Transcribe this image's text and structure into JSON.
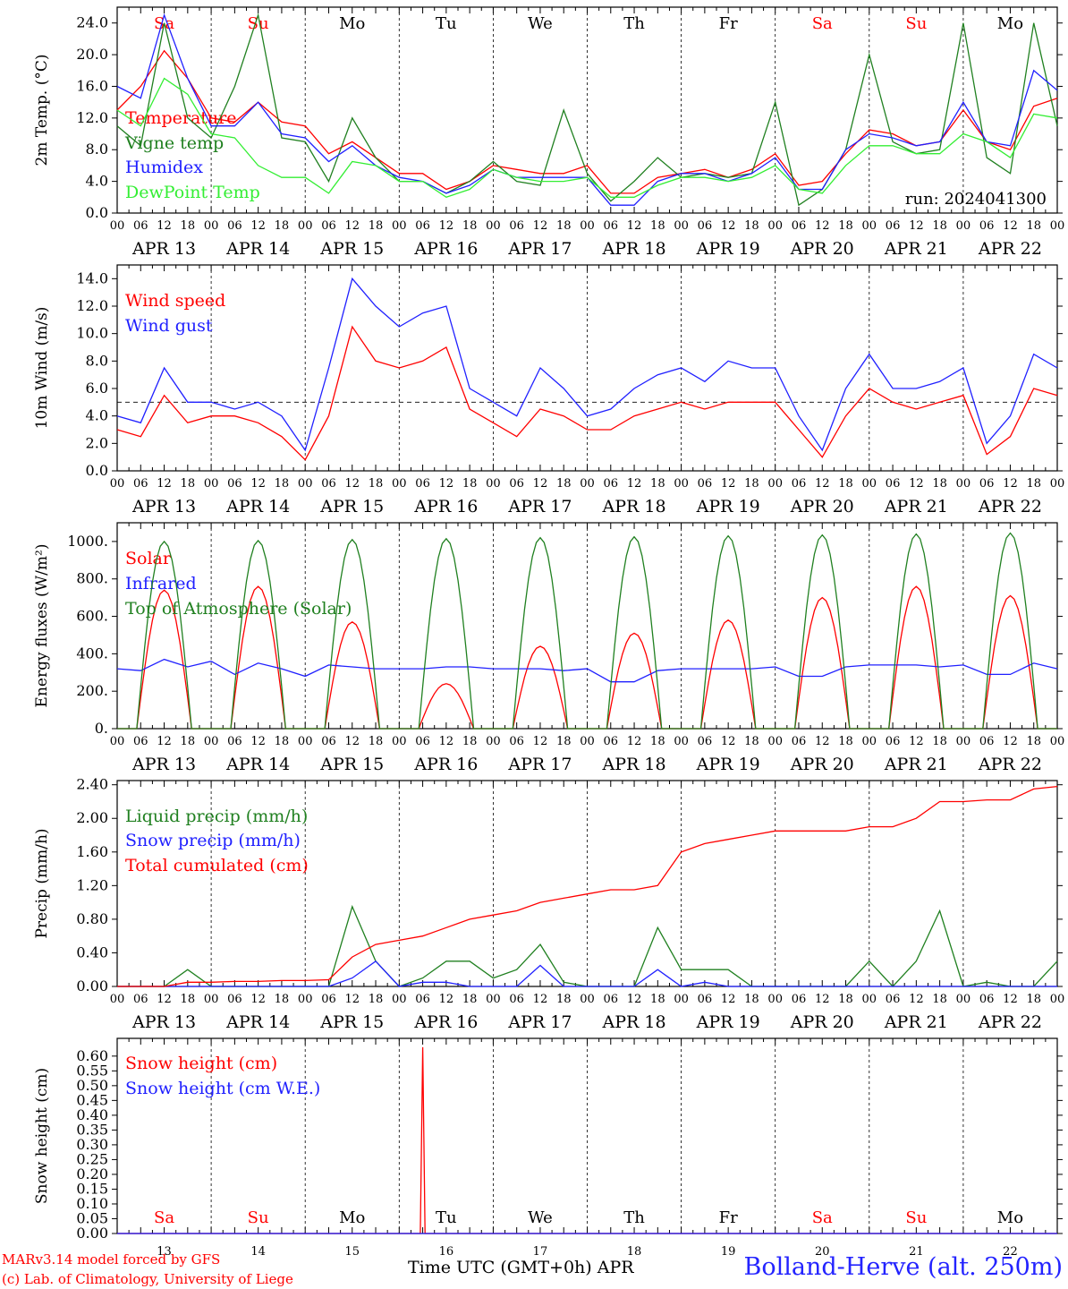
{
  "footer": {
    "model": "MARv3.14 model forced by GFS",
    "copyright": "(c) Lab. of Climatology, University of Liege",
    "axis_label": "Time UTC (GMT+0h) APR",
    "station": "Bolland-Herve (alt. 250m)"
  },
  "colors": {
    "red": "#ff0000",
    "green": "#208020",
    "blue": "#2020ff",
    "lightgreen": "#33ee33",
    "black": "#000000"
  },
  "chart_data": [
    {
      "type": "line",
      "ylabel": "2m Temp. (°C)",
      "ylim": [
        0,
        26
      ],
      "yticks": [
        "0.0",
        "4.0",
        "8.0",
        "12.0",
        "16.0",
        "20.0",
        "24.0"
      ],
      "yticks_values": [
        0,
        4,
        8,
        12,
        16,
        20,
        24
      ],
      "annotation": "run: 2024041300",
      "weekdays": [
        "Sa",
        "Su",
        "Mo",
        "Tu",
        "We",
        "Th",
        "Fr",
        "Sa",
        "Su",
        "Mo"
      ],
      "weekday_colors": [
        "red",
        "red",
        "black",
        "black",
        "black",
        "black",
        "black",
        "red",
        "red",
        "black"
      ],
      "date_labels": [
        "APR 13",
        "APR 14",
        "APR 15",
        "APR 16",
        "APR 17",
        "APR 18",
        "APR 19",
        "APR 20",
        "APR 21",
        "APR 22"
      ],
      "hour_labels": [
        "00",
        "06",
        "12",
        "18"
      ],
      "x_hours": [
        0,
        6,
        12,
        18,
        24,
        30,
        36,
        42,
        48,
        54,
        60,
        66,
        72,
        78,
        84,
        90,
        96,
        102,
        108,
        114,
        120,
        126,
        132,
        138,
        144,
        150,
        156,
        162,
        168,
        174,
        180,
        186,
        192,
        198,
        204,
        210,
        216,
        222,
        228,
        234,
        240
      ],
      "series": [
        {
          "name": "Temperature",
          "color": "red",
          "values": [
            13,
            16,
            20.5,
            17,
            12,
            11.5,
            14,
            11.5,
            11,
            7.5,
            9,
            7,
            5,
            5,
            3,
            4,
            6,
            5.5,
            5,
            5,
            6,
            2.5,
            2.5,
            4.5,
            5,
            5.5,
            4.5,
            5.5,
            7.5,
            3.5,
            4,
            7.5,
            10.5,
            10,
            8.5,
            9,
            13,
            9,
            8,
            13.5,
            14.5
          ]
        },
        {
          "name": "Vigne temp",
          "color": "green",
          "values": [
            11,
            8.5,
            24,
            12,
            9.5,
            16,
            25,
            9.5,
            9,
            4,
            12,
            7,
            4,
            4,
            2.5,
            4,
            6.5,
            4,
            3.5,
            13,
            5,
            1.5,
            4,
            7,
            4.5,
            5,
            4.5,
            5,
            14,
            1,
            3,
            8,
            20,
            9,
            7.5,
            8,
            24,
            7,
            5,
            24,
            11
          ]
        },
        {
          "name": "Humidex",
          "color": "blue",
          "values": [
            16,
            14.5,
            25,
            17,
            11,
            11,
            14,
            10,
            9.5,
            6.5,
            8.5,
            6,
            4.5,
            4,
            2.5,
            3.5,
            5.5,
            4.5,
            4.5,
            4.5,
            4.5,
            1,
            1,
            4,
            5,
            5,
            4,
            5,
            7,
            3,
            3,
            8,
            10,
            9.5,
            8.5,
            9,
            14,
            9,
            8.5,
            18,
            15.5
          ]
        },
        {
          "name": "DewPoint Temp",
          "color": "lightgreen",
          "values": [
            13,
            11,
            17,
            15,
            10,
            9.5,
            6,
            4.5,
            4.5,
            2.5,
            6.5,
            6,
            4,
            4,
            2,
            3,
            5.5,
            4.5,
            4,
            4,
            4.5,
            2,
            2,
            3.5,
            4.5,
            4.5,
            4,
            4.5,
            6,
            3,
            2.5,
            6,
            8.5,
            8.5,
            7.5,
            7.5,
            10,
            9,
            7,
            12.5,
            12
          ]
        }
      ],
      "reference_line": null
    },
    {
      "type": "line",
      "ylabel": "10m Wind (m/s)",
      "ylim": [
        0,
        15
      ],
      "yticks": [
        "0.0",
        "2.0",
        "4.0",
        "6.0",
        "8.0",
        "10.0",
        "12.0",
        "14.0"
      ],
      "yticks_values": [
        0,
        2,
        4,
        6,
        8,
        10,
        12,
        14
      ],
      "date_labels": [
        "APR 13",
        "APR 14",
        "APR 15",
        "APR 16",
        "APR 17",
        "APR 18",
        "APR 19",
        "APR 20",
        "APR 21",
        "APR 22"
      ],
      "hour_labels": [
        "00",
        "06",
        "12",
        "18"
      ],
      "x_hours": [
        0,
        6,
        12,
        18,
        24,
        30,
        36,
        42,
        48,
        54,
        60,
        66,
        72,
        78,
        84,
        90,
        96,
        102,
        108,
        114,
        120,
        126,
        132,
        138,
        144,
        150,
        156,
        162,
        168,
        174,
        180,
        186,
        192,
        198,
        204,
        210,
        216,
        222,
        228,
        234,
        240
      ],
      "series": [
        {
          "name": "Wind speed",
          "color": "red",
          "values": [
            3,
            2.5,
            5.5,
            3.5,
            4,
            4,
            3.5,
            2.5,
            0.8,
            4,
            10.5,
            8,
            7.5,
            8,
            9,
            4.5,
            3.5,
            2.5,
            4.5,
            4,
            3,
            3,
            4,
            4.5,
            5,
            4.5,
            5,
            5,
            5,
            3,
            1,
            4,
            6,
            5,
            4.5,
            5,
            5.5,
            1.2,
            2.5,
            6,
            5.5
          ]
        },
        {
          "name": "Wind gust",
          "color": "blue",
          "values": [
            4,
            3.5,
            7.5,
            5,
            5,
            4.5,
            5,
            4,
            1.5,
            7.5,
            14,
            12,
            10.5,
            11.5,
            12,
            6,
            5,
            4,
            7.5,
            6,
            4,
            4.5,
            6,
            7,
            7.5,
            6.5,
            8,
            7.5,
            7.5,
            4,
            1.5,
            6,
            8.5,
            6,
            6,
            6.5,
            7.5,
            2,
            4,
            8.5,
            7.5
          ]
        }
      ],
      "reference_line": 5
    },
    {
      "type": "line",
      "ylabel": "Energy fluxes (W/m²)",
      "ylim": [
        0,
        1100
      ],
      "yticks": [
        "0.",
        "200.",
        "400.",
        "600.",
        "800.",
        "1000."
      ],
      "yticks_values": [
        0,
        200,
        400,
        600,
        800,
        1000
      ],
      "date_labels": [
        "APR 13",
        "APR 14",
        "APR 15",
        "APR 16",
        "APR 17",
        "APR 18",
        "APR 19",
        "APR 20",
        "APR 21",
        "APR 22"
      ],
      "hour_labels": [
        "00",
        "06",
        "12",
        "18"
      ],
      "series": [
        {
          "name": "Solar",
          "color": "red",
          "peaks": [
            740,
            760,
            570,
            240,
            440,
            510,
            580,
            700,
            760,
            710
          ]
        },
        {
          "name": "Infrared",
          "color": "blue",
          "values": [
            320,
            310,
            370,
            330,
            360,
            290,
            350,
            320,
            280,
            340,
            330,
            320,
            320,
            320,
            330,
            330,
            320,
            320,
            320,
            310,
            320,
            250,
            250,
            310,
            320,
            320,
            320,
            320,
            330,
            280,
            280,
            330,
            340,
            340,
            340,
            330,
            340,
            290,
            290,
            350,
            320
          ]
        },
        {
          "name": "Top of Atmosphere (Solar)",
          "color": "green",
          "peaks": [
            1000,
            1005,
            1010,
            1015,
            1020,
            1025,
            1030,
            1035,
            1040,
            1045
          ]
        }
      ],
      "reference_line": null
    },
    {
      "type": "line",
      "ylabel": "Precip (mm/h)",
      "ylim": [
        0,
        2.45
      ],
      "yticks": [
        "0.00",
        "0.40",
        "0.80",
        "1.20",
        "1.60",
        "2.00",
        "2.40"
      ],
      "yticks_values": [
        0,
        0.4,
        0.8,
        1.2,
        1.6,
        2.0,
        2.4
      ],
      "date_labels": [
        "APR 13",
        "APR 14",
        "APR 15",
        "APR 16",
        "APR 17",
        "APR 18",
        "APR 19",
        "APR 20",
        "APR 21",
        "APR 22"
      ],
      "hour_labels": [
        "00",
        "06",
        "12",
        "18"
      ],
      "x_hours": [
        0,
        6,
        12,
        18,
        24,
        30,
        36,
        42,
        48,
        54,
        60,
        66,
        72,
        78,
        84,
        90,
        96,
        102,
        108,
        114,
        120,
        126,
        132,
        138,
        144,
        150,
        156,
        162,
        168,
        174,
        180,
        186,
        192,
        198,
        204,
        210,
        216,
        222,
        228,
        234,
        240
      ],
      "series": [
        {
          "name": "Liquid precip (mm/h)",
          "color": "green",
          "values": [
            0,
            0,
            0,
            0.2,
            0,
            0,
            0,
            0,
            0,
            0,
            0.95,
            0.3,
            0,
            0.1,
            0.3,
            0.3,
            0.1,
            0.2,
            0.5,
            0.05,
            0,
            0,
            0,
            0.7,
            0.2,
            0.2,
            0.2,
            0,
            0,
            0,
            0,
            0,
            0.3,
            0,
            0.3,
            0.9,
            0,
            0.05,
            0,
            0,
            0.3
          ]
        },
        {
          "name": "Snow precip (mm/h)",
          "color": "blue",
          "values": [
            0,
            0,
            0,
            0,
            0,
            0,
            0,
            0,
            0,
            0,
            0.1,
            0.3,
            0,
            0.05,
            0.05,
            0,
            0,
            0,
            0.25,
            0,
            0,
            0,
            0,
            0.2,
            0,
            0.05,
            0,
            0,
            0,
            0,
            0,
            0,
            0,
            0,
            0,
            0,
            0,
            0,
            0,
            0,
            0
          ]
        },
        {
          "name": "Total cumulated (cm)",
          "color": "red",
          "values": [
            0,
            0,
            0,
            0.05,
            0.05,
            0.06,
            0.06,
            0.07,
            0.07,
            0.08,
            0.35,
            0.5,
            0.55,
            0.6,
            0.7,
            0.8,
            0.85,
            0.9,
            1.0,
            1.05,
            1.1,
            1.15,
            1.15,
            1.2,
            1.6,
            1.7,
            1.75,
            1.8,
            1.85,
            1.85,
            1.85,
            1.85,
            1.9,
            1.9,
            2.0,
            2.2,
            2.2,
            2.22,
            2.22,
            2.35,
            2.38
          ]
        }
      ],
      "reference_line": null
    },
    {
      "type": "line",
      "ylabel": "Snow height (cm)",
      "ylim": [
        0,
        0.66
      ],
      "yticks": [
        "0.00",
        "0.05",
        "0.10",
        "0.15",
        "0.20",
        "0.25",
        "0.30",
        "0.35",
        "0.40",
        "0.45",
        "0.50",
        "0.55",
        "0.60"
      ],
      "yticks_values": [
        0,
        0.05,
        0.1,
        0.15,
        0.2,
        0.25,
        0.3,
        0.35,
        0.4,
        0.45,
        0.5,
        0.55,
        0.6
      ],
      "weekdays": [
        "Sa",
        "Su",
        "Mo",
        "Tu",
        "We",
        "Th",
        "Fr",
        "Sa",
        "Su",
        "Mo"
      ],
      "weekday_colors": [
        "red",
        "red",
        "black",
        "black",
        "black",
        "black",
        "black",
        "red",
        "red",
        "black"
      ],
      "day_numbers": [
        "13",
        "14",
        "15",
        "16",
        "17",
        "18",
        "19",
        "20",
        "21",
        "22"
      ],
      "series": [
        {
          "name": "Snow height (cm)",
          "color": "red",
          "spike": {
            "x_hour": 78,
            "value": 0.63
          }
        },
        {
          "name": "Snow height (cm W.E.)",
          "color": "blue",
          "spike": null
        }
      ],
      "reference_line": null
    }
  ]
}
